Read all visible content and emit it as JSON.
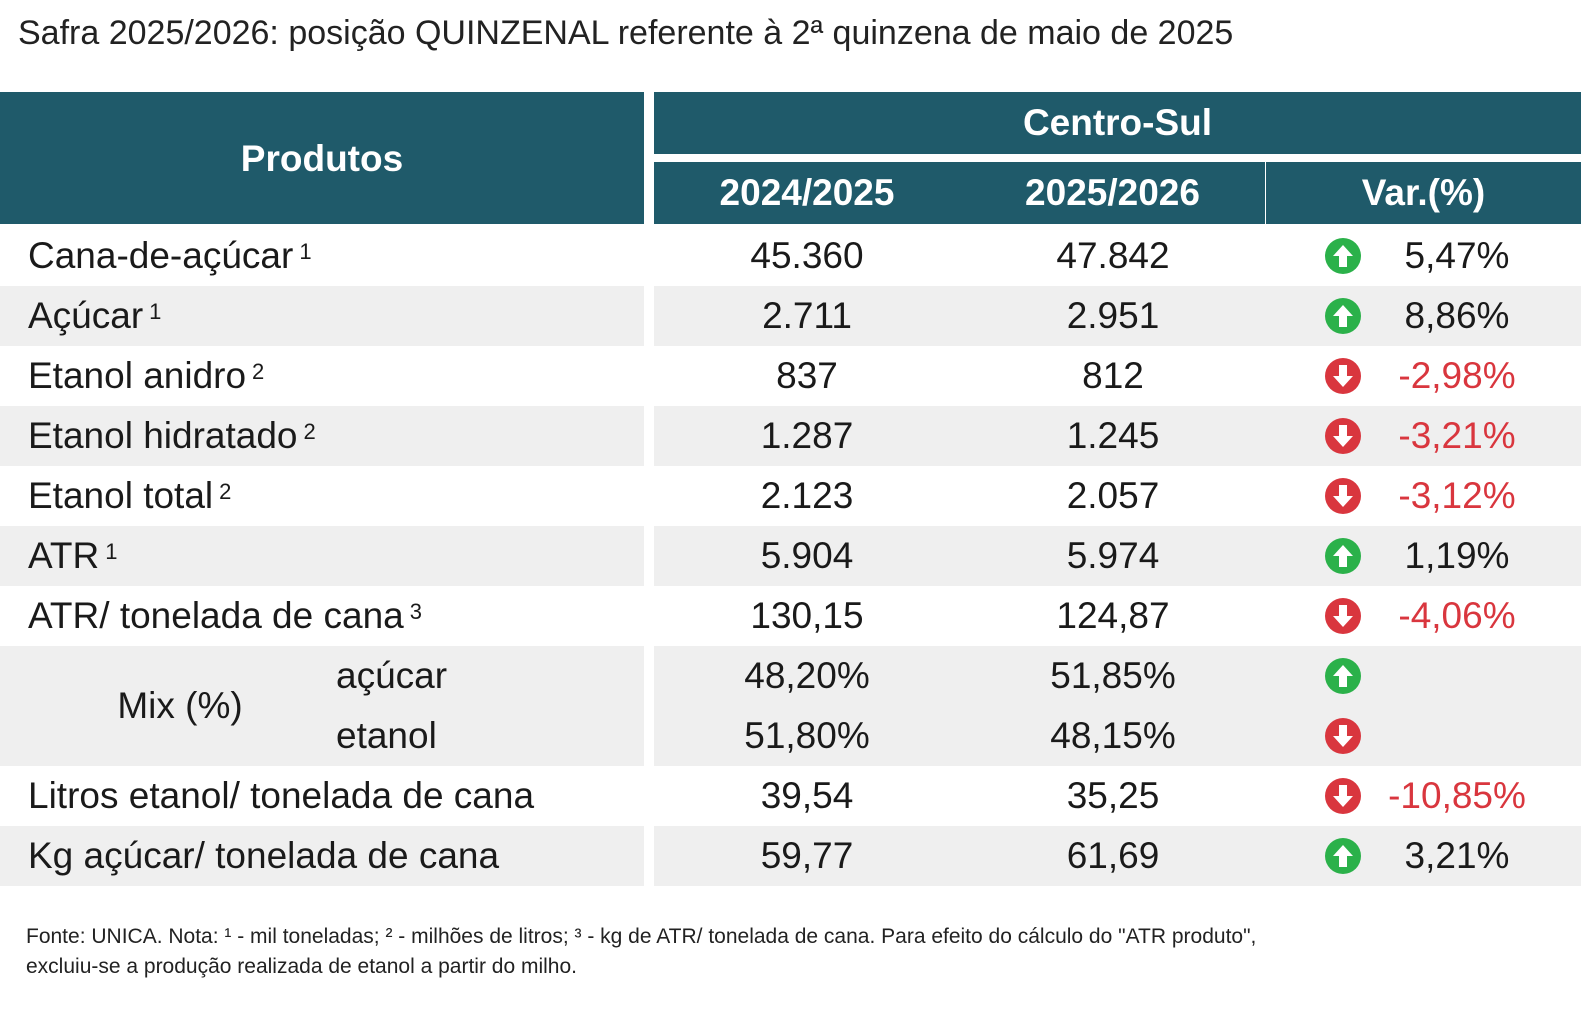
{
  "title": "Safra 2025/2026: posição QUINZENAL referente à 2ª quinzena de maio de 2025",
  "header": {
    "produtos": "Produtos",
    "region": "Centro-Sul",
    "col1": "2024/2025",
    "col2": "2025/2026",
    "col3": "Var.(%)"
  },
  "rows": [
    {
      "label": "Cana-de-açúcar",
      "note": "1",
      "v1": "45.360",
      "v2": "47.842",
      "var": "5,47%",
      "trend": "up"
    },
    {
      "label": "Açúcar",
      "note": "1",
      "v1": "2.711",
      "v2": "2.951",
      "var": "8,86%",
      "trend": "up"
    },
    {
      "label": "Etanol anidro",
      "note": "2",
      "v1": "837",
      "v2": "812",
      "var": "-2,98%",
      "trend": "down"
    },
    {
      "label": "Etanol hidratado",
      "note": "2",
      "v1": "1.287",
      "v2": "1.245",
      "var": "-3,21%",
      "trend": "down"
    },
    {
      "label": "Etanol total",
      "note": "2",
      "v1": "2.123",
      "v2": "2.057",
      "var": "-3,12%",
      "trend": "down"
    },
    {
      "label": "ATR",
      "note": "1",
      "v1": "5.904",
      "v2": "5.974",
      "var": "1,19%",
      "trend": "up"
    },
    {
      "label": "ATR/ tonelada de cana",
      "note": "3",
      "v1": "130,15",
      "v2": "124,87",
      "var": "-4,06%",
      "trend": "down"
    }
  ],
  "mix": {
    "label": "Mix (%)",
    "acucar": {
      "label": "açúcar",
      "v1": "48,20%",
      "v2": "51,85%",
      "trend": "up"
    },
    "etanol": {
      "label": "etanol",
      "v1": "51,80%",
      "v2": "48,15%",
      "trend": "down"
    }
  },
  "rows_after": [
    {
      "label": "Litros etanol/ tonelada de cana",
      "v1": "39,54",
      "v2": "35,25",
      "var": "-10,85%",
      "trend": "down"
    },
    {
      "label": "Kg açúcar/ tonelada de cana",
      "v1": "59,77",
      "v2": "61,69",
      "var": "3,21%",
      "trend": "up"
    }
  ],
  "footer": {
    "line1": "Fonte: UNICA. Nota: ¹ - mil toneladas; ² - milhões de litros; ³ - kg de ATR/ tonelada de cana. Para efeito do cálculo do \"ATR produto\",",
    "line2": "excluiu-se a produção realizada de etanol a partir do milho."
  },
  "colors": {
    "header_bg": "#1f5a6a",
    "up": "#2bb14a",
    "down": "#d9363e",
    "shade": "#efefef"
  },
  "icons": {
    "up": "arrow-up-circle-icon",
    "down": "arrow-down-circle-icon"
  }
}
